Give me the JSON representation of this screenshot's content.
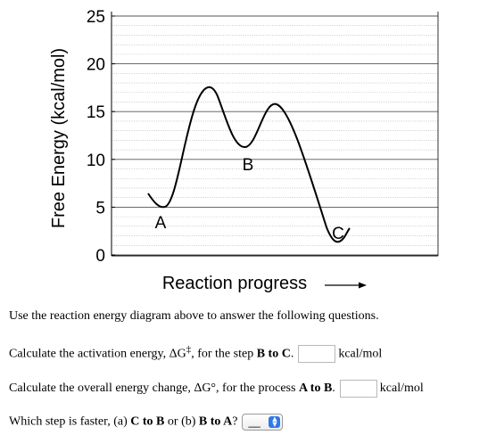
{
  "chart_data": {
    "type": "line",
    "ylabel": "Free Energy (kcal/mol)",
    "xlabel": "Reaction progress",
    "ylim": [
      0,
      25
    ],
    "y_ticks": [
      0,
      5,
      10,
      15,
      20,
      25
    ],
    "grid": true,
    "points": [
      {
        "label": "A",
        "energy": 5
      },
      {
        "label": "B",
        "energy": 11
      },
      {
        "label": "C",
        "energy": 1
      }
    ]
  },
  "questions": {
    "intro": "Use the reaction energy diagram above to answer the following questions.",
    "q1": {
      "prefix": "Calculate the activation energy, ΔG",
      "symbol": "‡",
      "middle": ", for the step ",
      "bold": "B to C",
      "suffix": ".",
      "unit": "kcal/mol",
      "value": ""
    },
    "q2": {
      "prefix": "Calculate the overall energy change, ΔG°, for the process ",
      "bold": "A to B",
      "suffix": ".",
      "unit": "kcal/mol",
      "value": ""
    },
    "q3": {
      "prefix": "Which step is faster, (a) ",
      "bold1": "C to B",
      "middle": " or (b) ",
      "bold2": "B to A",
      "suffix": "?",
      "selected": "__"
    }
  },
  "colors": {
    "select_arrow": "#2f7ae5",
    "grid": "#aaaaaa"
  }
}
